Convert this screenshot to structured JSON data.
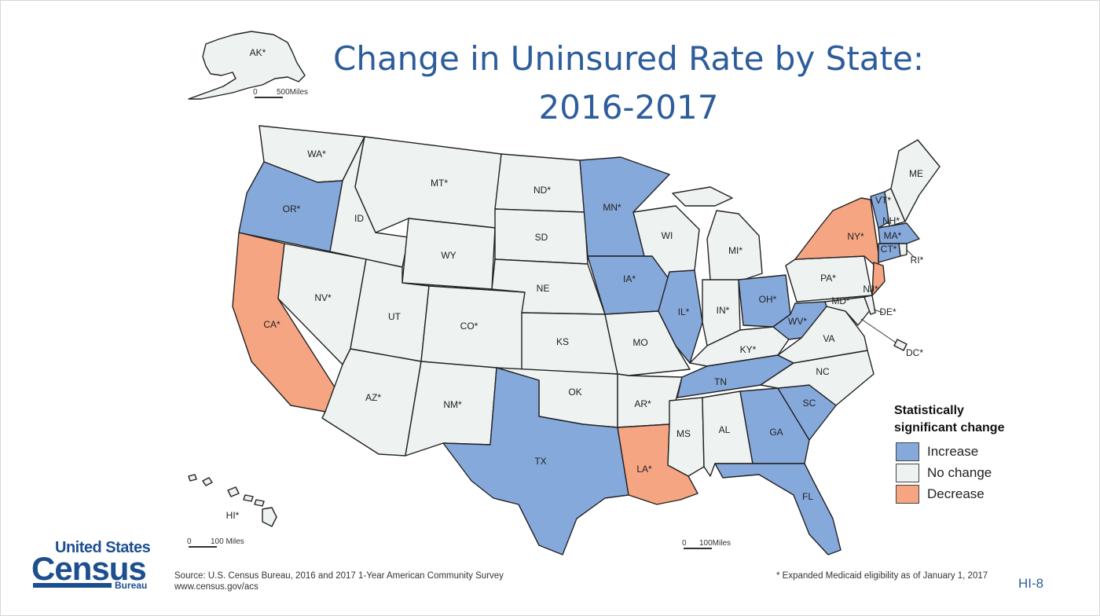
{
  "title": {
    "line1": "Change in Uninsured Rate by State:",
    "line2": "2016-2017"
  },
  "legend": {
    "title_line1": "Statistically",
    "title_line2": "significant change",
    "items": [
      {
        "label": "Increase",
        "color": "#86a9dc"
      },
      {
        "label": "No change",
        "color": "#eef2f1"
      },
      {
        "label": "Decrease",
        "color": "#f6a582"
      }
    ]
  },
  "states": [
    {
      "label": "WA*",
      "change": "No change"
    },
    {
      "label": "OR*",
      "change": "Increase"
    },
    {
      "label": "CA*",
      "change": "Decrease"
    },
    {
      "label": "ID",
      "change": "No change"
    },
    {
      "label": "NV*",
      "change": "No change"
    },
    {
      "label": "MT*",
      "change": "No change"
    },
    {
      "label": "WY",
      "change": "No change"
    },
    {
      "label": "UT",
      "change": "No change"
    },
    {
      "label": "AZ*",
      "change": "No change"
    },
    {
      "label": "CO*",
      "change": "No change"
    },
    {
      "label": "NM*",
      "change": "No change"
    },
    {
      "label": "ND*",
      "change": "No change"
    },
    {
      "label": "SD",
      "change": "No change"
    },
    {
      "label": "NE",
      "change": "No change"
    },
    {
      "label": "KS",
      "change": "No change"
    },
    {
      "label": "OK",
      "change": "No change"
    },
    {
      "label": "TX",
      "change": "Increase"
    },
    {
      "label": "MN*",
      "change": "Increase"
    },
    {
      "label": "IA*",
      "change": "Increase"
    },
    {
      "label": "MO",
      "change": "No change"
    },
    {
      "label": "AR*",
      "change": "No change"
    },
    {
      "label": "LA*",
      "change": "Decrease"
    },
    {
      "label": "WI",
      "change": "No change"
    },
    {
      "label": "IL*",
      "change": "Increase"
    },
    {
      "label": "MI*",
      "change": "No change"
    },
    {
      "label": "IN*",
      "change": "No change"
    },
    {
      "label": "OH*",
      "change": "Increase"
    },
    {
      "label": "KY*",
      "change": "No change"
    },
    {
      "label": "TN",
      "change": "Increase"
    },
    {
      "label": "MS",
      "change": "No change"
    },
    {
      "label": "AL",
      "change": "No change"
    },
    {
      "label": "GA",
      "change": "Increase"
    },
    {
      "label": "FL",
      "change": "Increase"
    },
    {
      "label": "SC",
      "change": "Increase"
    },
    {
      "label": "NC",
      "change": "No change"
    },
    {
      "label": "VA",
      "change": "No change"
    },
    {
      "label": "WV*",
      "change": "Increase"
    },
    {
      "label": "PA*",
      "change": "No change"
    },
    {
      "label": "NY*",
      "change": "Decrease"
    },
    {
      "label": "VT*",
      "change": "Increase"
    },
    {
      "label": "NH*",
      "change": "No change"
    },
    {
      "label": "ME",
      "change": "No change"
    },
    {
      "label": "MA*",
      "change": "Increase"
    },
    {
      "label": "CT*",
      "change": "Increase"
    },
    {
      "label": "RI*",
      "change": "No change"
    },
    {
      "label": "NJ*",
      "change": "Decrease"
    },
    {
      "label": "DE*",
      "change": "No change"
    },
    {
      "label": "MD*",
      "change": "No change"
    },
    {
      "label": "DC*",
      "change": "No change"
    },
    {
      "label": "AK*",
      "change": "No change"
    },
    {
      "label": "HI*",
      "change": "No change"
    }
  ],
  "scales": {
    "alaska": "500Miles",
    "hawaii": "100 Miles",
    "mainland": "100Miles",
    "zero": "0"
  },
  "logo": {
    "top": "United States",
    "main": "Census",
    "bottom": "Bureau"
  },
  "source": {
    "line1": "Source: U.S. Census Bureau, 2016 and 2017 1-Year American Community Survey",
    "line2": "www.census.gov/acs"
  },
  "footnote": "* Expanded Medicaid eligibility as of January 1, 2017",
  "slide_number": "HI-8"
}
